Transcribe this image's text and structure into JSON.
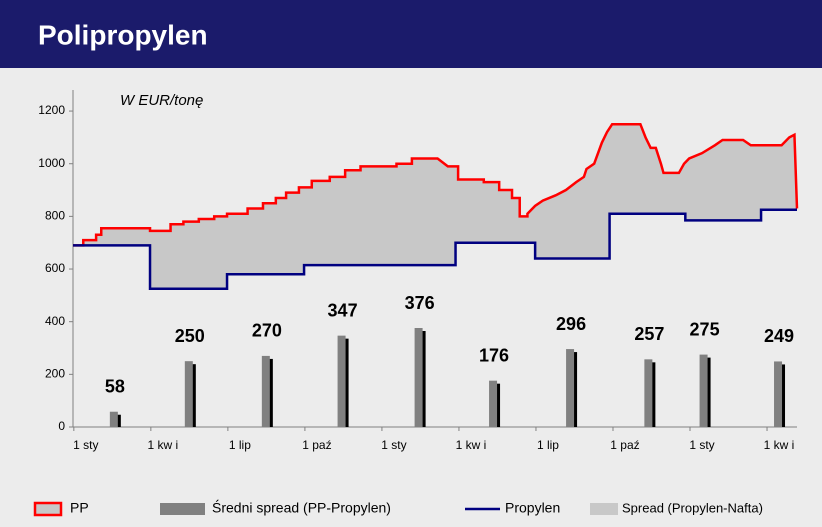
{
  "chart_data": {
    "type": "line",
    "title": "Polipropylen",
    "ylabel": "W EUR/tonę",
    "xlim": [
      0,
      28.2
    ],
    "xticks": [
      {
        "value": 0.5,
        "label": "1 sty"
      },
      {
        "value": 3.5,
        "label": "1 kw i"
      },
      {
        "value": 6.5,
        "label": "1 lip"
      },
      {
        "value": 9.5,
        "label": "1 paź"
      },
      {
        "value": 12.5,
        "label": "1 sty"
      },
      {
        "value": 15.5,
        "label": "1 kw i"
      },
      {
        "value": 18.5,
        "label": "1 lip"
      },
      {
        "value": 21.5,
        "label": "1 paź"
      },
      {
        "value": 24.5,
        "label": "1 sty"
      },
      {
        "value": 27.5,
        "label": "1 kw i"
      }
    ],
    "ylim": [
      0,
      1280
    ],
    "yticks": [
      0,
      200,
      400,
      600,
      800,
      1000,
      1200
    ],
    "grid": false,
    "legend": "bottom",
    "series": [
      {
        "name": "PP",
        "type": "step",
        "color": "#ff0000",
        "x": [
          0,
          0.4,
          0.4,
          0.9,
          0.9,
          1.1,
          1.1,
          3.0,
          3.0,
          3.8,
          3.8,
          4.3,
          4.3,
          4.9,
          4.9,
          5.5,
          5.5,
          6.0,
          6.0,
          6.8,
          6.8,
          7.4,
          7.4,
          7.9,
          7.9,
          8.3,
          8.3,
          8.8,
          8.8,
          9.3,
          9.3,
          10.0,
          10.0,
          10.6,
          10.6,
          11.2,
          11.2,
          12.6,
          12.6,
          13.2,
          13.2,
          14.2,
          14.6,
          15.0,
          15.0,
          16.0,
          16.0,
          16.6,
          16.6,
          17.1,
          17.1,
          17.4,
          17.4,
          17.7,
          17.7,
          18.0,
          18.3,
          18.8,
          19.2,
          19.6,
          19.9,
          20.0,
          20.3,
          20.6,
          20.8,
          21.0,
          22.1,
          22.3,
          22.5,
          22.7,
          22.9,
          23.0,
          23.6,
          23.8,
          24.0,
          24.5,
          25.0,
          25.3,
          26.1,
          26.4,
          27.6,
          27.9,
          28.1,
          28.2
        ],
        "values": [
          690,
          690,
          710,
          710,
          730,
          730,
          755,
          755,
          745,
          745,
          770,
          770,
          780,
          780,
          790,
          790,
          800,
          800,
          810,
          810,
          830,
          830,
          850,
          850,
          870,
          870,
          890,
          890,
          910,
          910,
          935,
          935,
          950,
          950,
          975,
          975,
          990,
          990,
          1000,
          1000,
          1020,
          1020,
          990,
          990,
          940,
          940,
          930,
          930,
          900,
          900,
          870,
          870,
          800,
          800,
          810,
          840,
          860,
          880,
          900,
          930,
          950,
          980,
          1000,
          1080,
          1120,
          1150,
          1150,
          1100,
          1060,
          1060,
          1000,
          965,
          965,
          1000,
          1020,
          1040,
          1070,
          1090,
          1090,
          1070,
          1070,
          1100,
          1110,
          830
        ]
      },
      {
        "name": "Średni spread (PP-Propylen)",
        "type": "bar",
        "color": "#808080",
        "x": [
          1.63,
          4.55,
          7.55,
          10.5,
          13.5,
          16.4,
          19.4,
          22.45,
          24.6,
          27.5
        ],
        "values": [
          58,
          250,
          270,
          347,
          376,
          176,
          296,
          257,
          275,
          249
        ]
      },
      {
        "name": "Propylen",
        "type": "step",
        "color": "#000080",
        "x": [
          0,
          3,
          3,
          6,
          6,
          9,
          9,
          14.9,
          14.9,
          18,
          18,
          20.9,
          20.9,
          23.85,
          23.85,
          26.8,
          26.8,
          28.2
        ],
        "values": [
          690,
          690,
          525,
          525,
          580,
          580,
          615,
          615,
          700,
          700,
          640,
          640,
          810,
          810,
          785,
          785,
          825,
          825
        ]
      },
      {
        "name": "Spread (Propylen-Nafta)",
        "type": "area",
        "color": "#c8c8c8"
      }
    ]
  }
}
